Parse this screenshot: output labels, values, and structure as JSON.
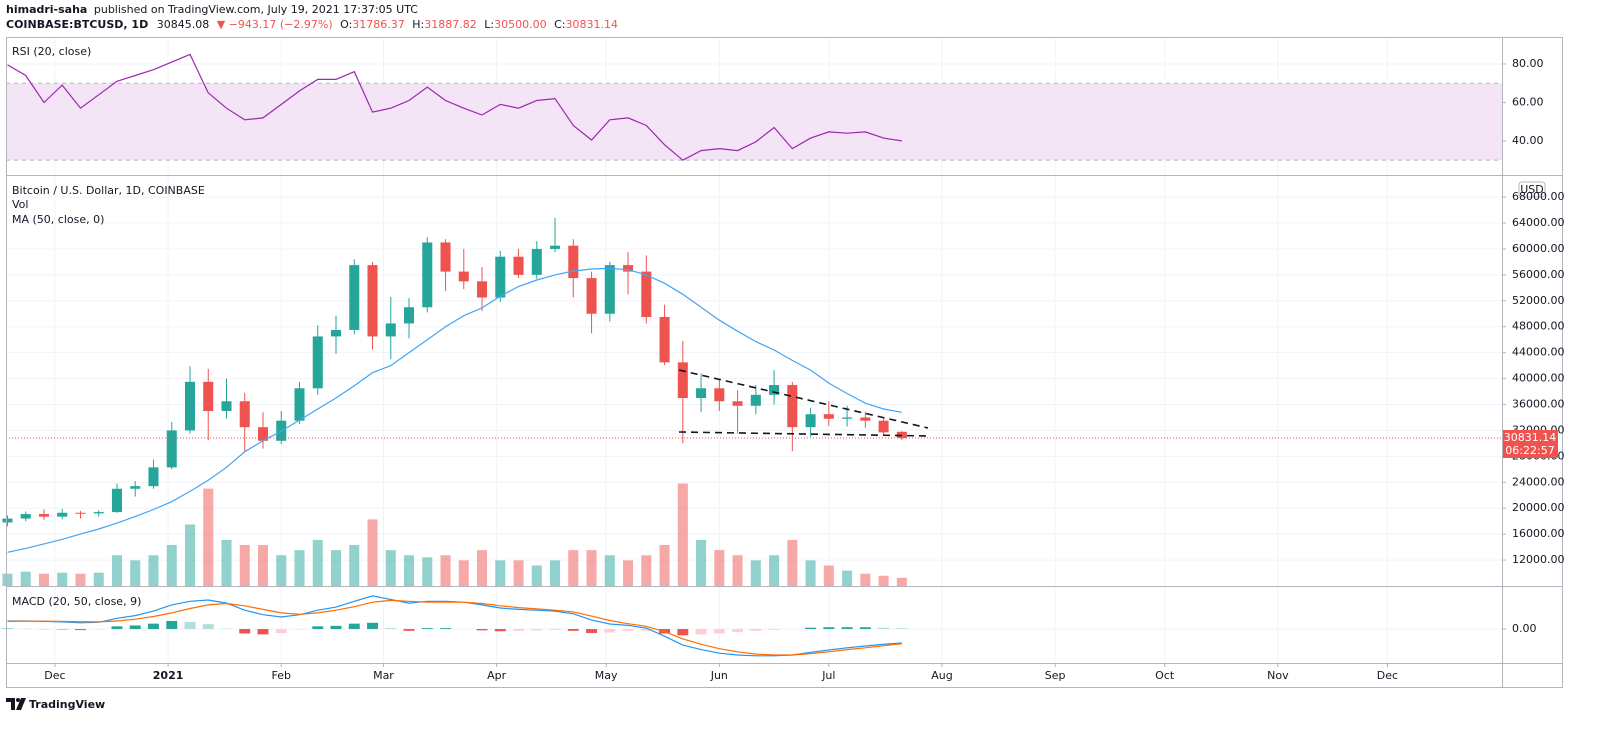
{
  "header": {
    "author": "himadri-saha",
    "published": "published on TradingView.com, July 19, 2021 17:37:05 UTC",
    "symbol": "COINBASE:BTCUSD, 1D",
    "last": "30845.08",
    "change": "▼ −943.17 (−2.97%)",
    "ohlc": [
      {
        "key": "O:",
        "value": "31786.37"
      },
      {
        "key": "H:",
        "value": "31887.82"
      },
      {
        "key": "L:",
        "value": "30500.00"
      },
      {
        "key": "C:",
        "value": "30831.14"
      }
    ]
  },
  "footer": {
    "brand": "TradingView"
  },
  "chart_data": [
    {
      "type": "line",
      "title": "RSI (20, close)",
      "color": "#9c27b0",
      "band": [
        30,
        70
      ],
      "band_color": "#f3e5f5",
      "xlim": [
        -13.4,
        396.4
      ],
      "x": [
        -13,
        -8,
        -3,
        2,
        7,
        12,
        17,
        22,
        27,
        32,
        37,
        42,
        47,
        52,
        57,
        62,
        67,
        72,
        77,
        82,
        87,
        92,
        97,
        102,
        107,
        112,
        117,
        122,
        127,
        132,
        137,
        142,
        147,
        152,
        157,
        162,
        167,
        172,
        177,
        182,
        187,
        192,
        197,
        202,
        207,
        212,
        217,
        222,
        227,
        232
      ],
      "values": [
        79.5,
        74,
        60,
        69,
        57,
        64,
        71,
        74,
        77,
        81,
        85,
        65,
        57,
        51,
        52,
        59,
        66,
        72,
        72,
        76,
        55,
        57,
        61,
        68,
        61,
        57,
        53.5,
        59,
        57,
        61,
        62,
        48,
        40.5,
        51,
        52,
        48,
        38,
        30,
        35,
        36,
        35,
        39.5,
        47,
        36,
        41.5,
        44.7,
        44,
        44.7,
        41.5,
        40
      ],
      "ylim": [
        22.3,
        93.5
      ],
      "yticks": [
        {
          "value": 40,
          "label": "40.00"
        },
        {
          "value": 60,
          "label": "60.00"
        },
        {
          "value": 80,
          "label": "80.00"
        }
      ]
    },
    {
      "type": "candlestick",
      "title": "Bitcoin / U.S. Dollar, 1D, COINBASE",
      "unit": "USD",
      "countdown": "06:22:57",
      "up_color": "#26a69a",
      "down_color": "#ef5350",
      "xlim": [
        -13.4,
        396.4
      ],
      "x": [
        -13,
        -8,
        -3,
        2,
        7,
        12,
        17,
        22,
        27,
        32,
        37,
        42,
        47,
        52,
        57,
        62,
        67,
        72,
        77,
        82,
        87,
        92,
        97,
        102,
        107,
        112,
        117,
        122,
        127,
        132,
        137,
        142,
        147,
        152,
        157,
        162,
        167,
        172,
        177,
        182,
        187,
        192,
        197,
        202,
        207,
        212,
        217,
        222,
        227,
        232
      ],
      "open": [
        17800,
        18400,
        19100,
        18700,
        19300,
        19200,
        19400,
        23000,
        23400,
        26300,
        32000,
        39500,
        35000,
        36500,
        32500,
        30400,
        33500,
        38500,
        46500,
        47500,
        57500,
        46500,
        48500,
        51000,
        61000,
        56500,
        55000,
        52500,
        58800,
        56000,
        60000,
        60500,
        55500,
        50000,
        57500,
        56500,
        49500,
        42500,
        37000,
        38500,
        36500,
        35800,
        37500,
        39000,
        32500,
        34500,
        33800,
        34000,
        33500,
        31786.37
      ],
      "high": [
        18900,
        19500,
        19800,
        19900,
        19600,
        19700,
        23800,
        24200,
        27500,
        33300,
        41900,
        41500,
        40000,
        37800,
        34800,
        35000,
        39500,
        48200,
        49700,
        58400,
        58000,
        52600,
        52400,
        61800,
        61500,
        60000,
        57200,
        59700,
        60000,
        61200,
        64800,
        61500,
        56500,
        58000,
        59500,
        59000,
        51400,
        45800,
        40800,
        39800,
        38200,
        39000,
        41300,
        39500,
        35500,
        36500,
        35800,
        34900,
        33800,
        31887.82
      ],
      "low": [
        17200,
        18000,
        18200,
        18300,
        18400,
        18700,
        19300,
        21800,
        23000,
        26000,
        31500,
        30500,
        33800,
        28800,
        29200,
        29900,
        33000,
        37500,
        43800,
        46800,
        44500,
        43000,
        46200,
        50200,
        53500,
        53800,
        50400,
        51800,
        55500,
        55400,
        59500,
        52500,
        47000,
        48800,
        53000,
        48500,
        42100,
        30000,
        34800,
        35000,
        31500,
        34500,
        36000,
        28800,
        31000,
        32700,
        32600,
        32400,
        31200,
        30500
      ],
      "close": [
        18400,
        19100,
        18700,
        19300,
        19200,
        19400,
        23000,
        23400,
        26300,
        32000,
        39500,
        35000,
        36500,
        32500,
        30400,
        33500,
        38500,
        46500,
        47500,
        57500,
        46500,
        48500,
        51000,
        61000,
        56500,
        55000,
        52500,
        58800,
        56000,
        60000,
        60500,
        55500,
        50000,
        57500,
        56500,
        49500,
        42500,
        37000,
        38500,
        36500,
        35800,
        37500,
        39000,
        32500,
        34500,
        33800,
        34000,
        33500,
        31700,
        30831.14
      ],
      "volume": {
        "name": "Vol",
        "lim": [
          0,
          300000
        ],
        "values": [
          9000,
          10500,
          9000,
          9750,
          9000,
          9750,
          22500,
          18750,
          22500,
          30000,
          45000,
          71250,
          33750,
          30000,
          30000,
          22500,
          26250,
          33750,
          26250,
          30000,
          48750,
          26250,
          22500,
          21000,
          22500,
          18750,
          26250,
          18750,
          18750,
          15000,
          18750,
          26250,
          26250,
          22500,
          18750,
          22500,
          30000,
          75000,
          33750,
          26250,
          22500,
          18750,
          22500,
          33750,
          18750,
          15000,
          11250,
          9000,
          7500,
          6000
        ]
      },
      "ma": {
        "name": "MA (50, close, 0)",
        "color": "#42a5f5",
        "values": [
          13200,
          13800,
          14500,
          15200,
          16000,
          16800,
          17700,
          18700,
          19800,
          21000,
          22600,
          24300,
          26300,
          28700,
          30400,
          31900,
          33600,
          35300,
          37000,
          38900,
          40900,
          42000,
          44000,
          46000,
          48000,
          49700,
          50900,
          52700,
          54200,
          55200,
          56000,
          56600,
          56900,
          57000,
          56800,
          56000,
          54700,
          53000,
          51000,
          49000,
          47300,
          45700,
          44400,
          42800,
          41300,
          39300,
          37700,
          36200,
          35300,
          34800
        ]
      },
      "ylim": [
        8000,
        71250
      ],
      "yticks": [
        {
          "value": 12000,
          "label": "12000.00"
        },
        {
          "value": 16000,
          "label": "16000.00"
        },
        {
          "value": 20000,
          "label": "20000.00"
        },
        {
          "value": 24000,
          "label": "24000.00"
        },
        {
          "value": 28000,
          "label": "28000.00"
        },
        {
          "value": 32000,
          "label": "32000.00"
        },
        {
          "value": 36000,
          "label": "36000.00"
        },
        {
          "value": 40000,
          "label": "40000.00"
        },
        {
          "value": 44000,
          "label": "44000.00"
        },
        {
          "value": 48000,
          "label": "48000.00"
        },
        {
          "value": 52000,
          "label": "52000.00"
        },
        {
          "value": 56000,
          "label": "56000.00"
        },
        {
          "value": 60000,
          "label": "60000.00"
        },
        {
          "value": 64000,
          "label": "64000.00"
        },
        {
          "value": 68000,
          "label": "68000.00"
        }
      ]
    },
    {
      "type": "macd",
      "title": "MACD (20, 50, close, 9)",
      "xlim": [
        -13.4,
        396.4
      ],
      "xticks": [
        {
          "value": 0,
          "label": "Dec"
        },
        {
          "value": 31,
          "label": "2021"
        },
        {
          "value": 62,
          "label": "Feb"
        },
        {
          "value": 90,
          "label": "Mar"
        },
        {
          "value": 121,
          "label": "Apr"
        },
        {
          "value": 151,
          "label": "May"
        },
        {
          "value": 182,
          "label": "Jun"
        },
        {
          "value": 212,
          "label": "Jul"
        },
        {
          "value": 243,
          "label": "Aug"
        },
        {
          "value": 274,
          "label": "Sep"
        },
        {
          "value": 304,
          "label": "Oct"
        },
        {
          "value": 335,
          "label": "Nov"
        },
        {
          "value": 365,
          "label": "Dec"
        }
      ],
      "x": [
        -13,
        -8,
        -3,
        2,
        7,
        12,
        17,
        22,
        27,
        32,
        37,
        42,
        47,
        52,
        57,
        62,
        67,
        72,
        77,
        82,
        87,
        92,
        97,
        102,
        107,
        112,
        117,
        122,
        127,
        132,
        137,
        142,
        147,
        152,
        157,
        162,
        167,
        172,
        177,
        182,
        187,
        192,
        197,
        202,
        207,
        212,
        217,
        222,
        227,
        232
      ],
      "macd": {
        "color": "#2196f3",
        "values": [
          900,
          900,
          850,
          800,
          700,
          750,
          1200,
          1500,
          2000,
          2700,
          3100,
          3250,
          2900,
          2100,
          1600,
          1350,
          1600,
          2100,
          2450,
          3100,
          3700,
          3300,
          2900,
          3100,
          3100,
          3000,
          2700,
          2350,
          2200,
          2100,
          2000,
          1700,
          1000,
          560,
          400,
          100,
          -800,
          -1800,
          -2300,
          -2700,
          -2900,
          -3000,
          -3000,
          -2900,
          -2600,
          -2350,
          -2100,
          -1900,
          -1700,
          -1560
        ]
      },
      "signal": {
        "color": "#ff6d00",
        "values": [
          850,
          870,
          870,
          850,
          820,
          800,
          900,
          1100,
          1400,
          1800,
          2300,
          2700,
          2850,
          2600,
          2200,
          1800,
          1650,
          1800,
          2100,
          2500,
          3000,
          3200,
          3100,
          3000,
          3000,
          3000,
          2850,
          2600,
          2400,
          2250,
          2100,
          1900,
          1450,
          950,
          600,
          300,
          -300,
          -1100,
          -1700,
          -2200,
          -2550,
          -2800,
          -2900,
          -2900,
          -2750,
          -2550,
          -2300,
          -2100,
          -1850,
          -1650
        ]
      },
      "histogram": {
        "colors": [
          "#26a69a",
          "#b2dfdb",
          "#ffcdd2",
          "#ef5350"
        ],
        "values": [
          50,
          30,
          -20,
          -50,
          -120,
          -50,
          300,
          400,
          600,
          900,
          800,
          550,
          50,
          -500,
          -600,
          -450,
          -50,
          300,
          350,
          600,
          700,
          100,
          -200,
          100,
          100,
          0,
          -150,
          -250,
          -200,
          -150,
          -100,
          -200,
          -450,
          -390,
          -200,
          -200,
          -500,
          -700,
          -600,
          -500,
          -350,
          -200,
          -100,
          0,
          150,
          200,
          200,
          200,
          150,
          90
        ]
      },
      "ylim": [
        -3800,
        4700
      ],
      "yticks": [
        {
          "value": 0,
          "label": "0.00"
        }
      ]
    }
  ]
}
